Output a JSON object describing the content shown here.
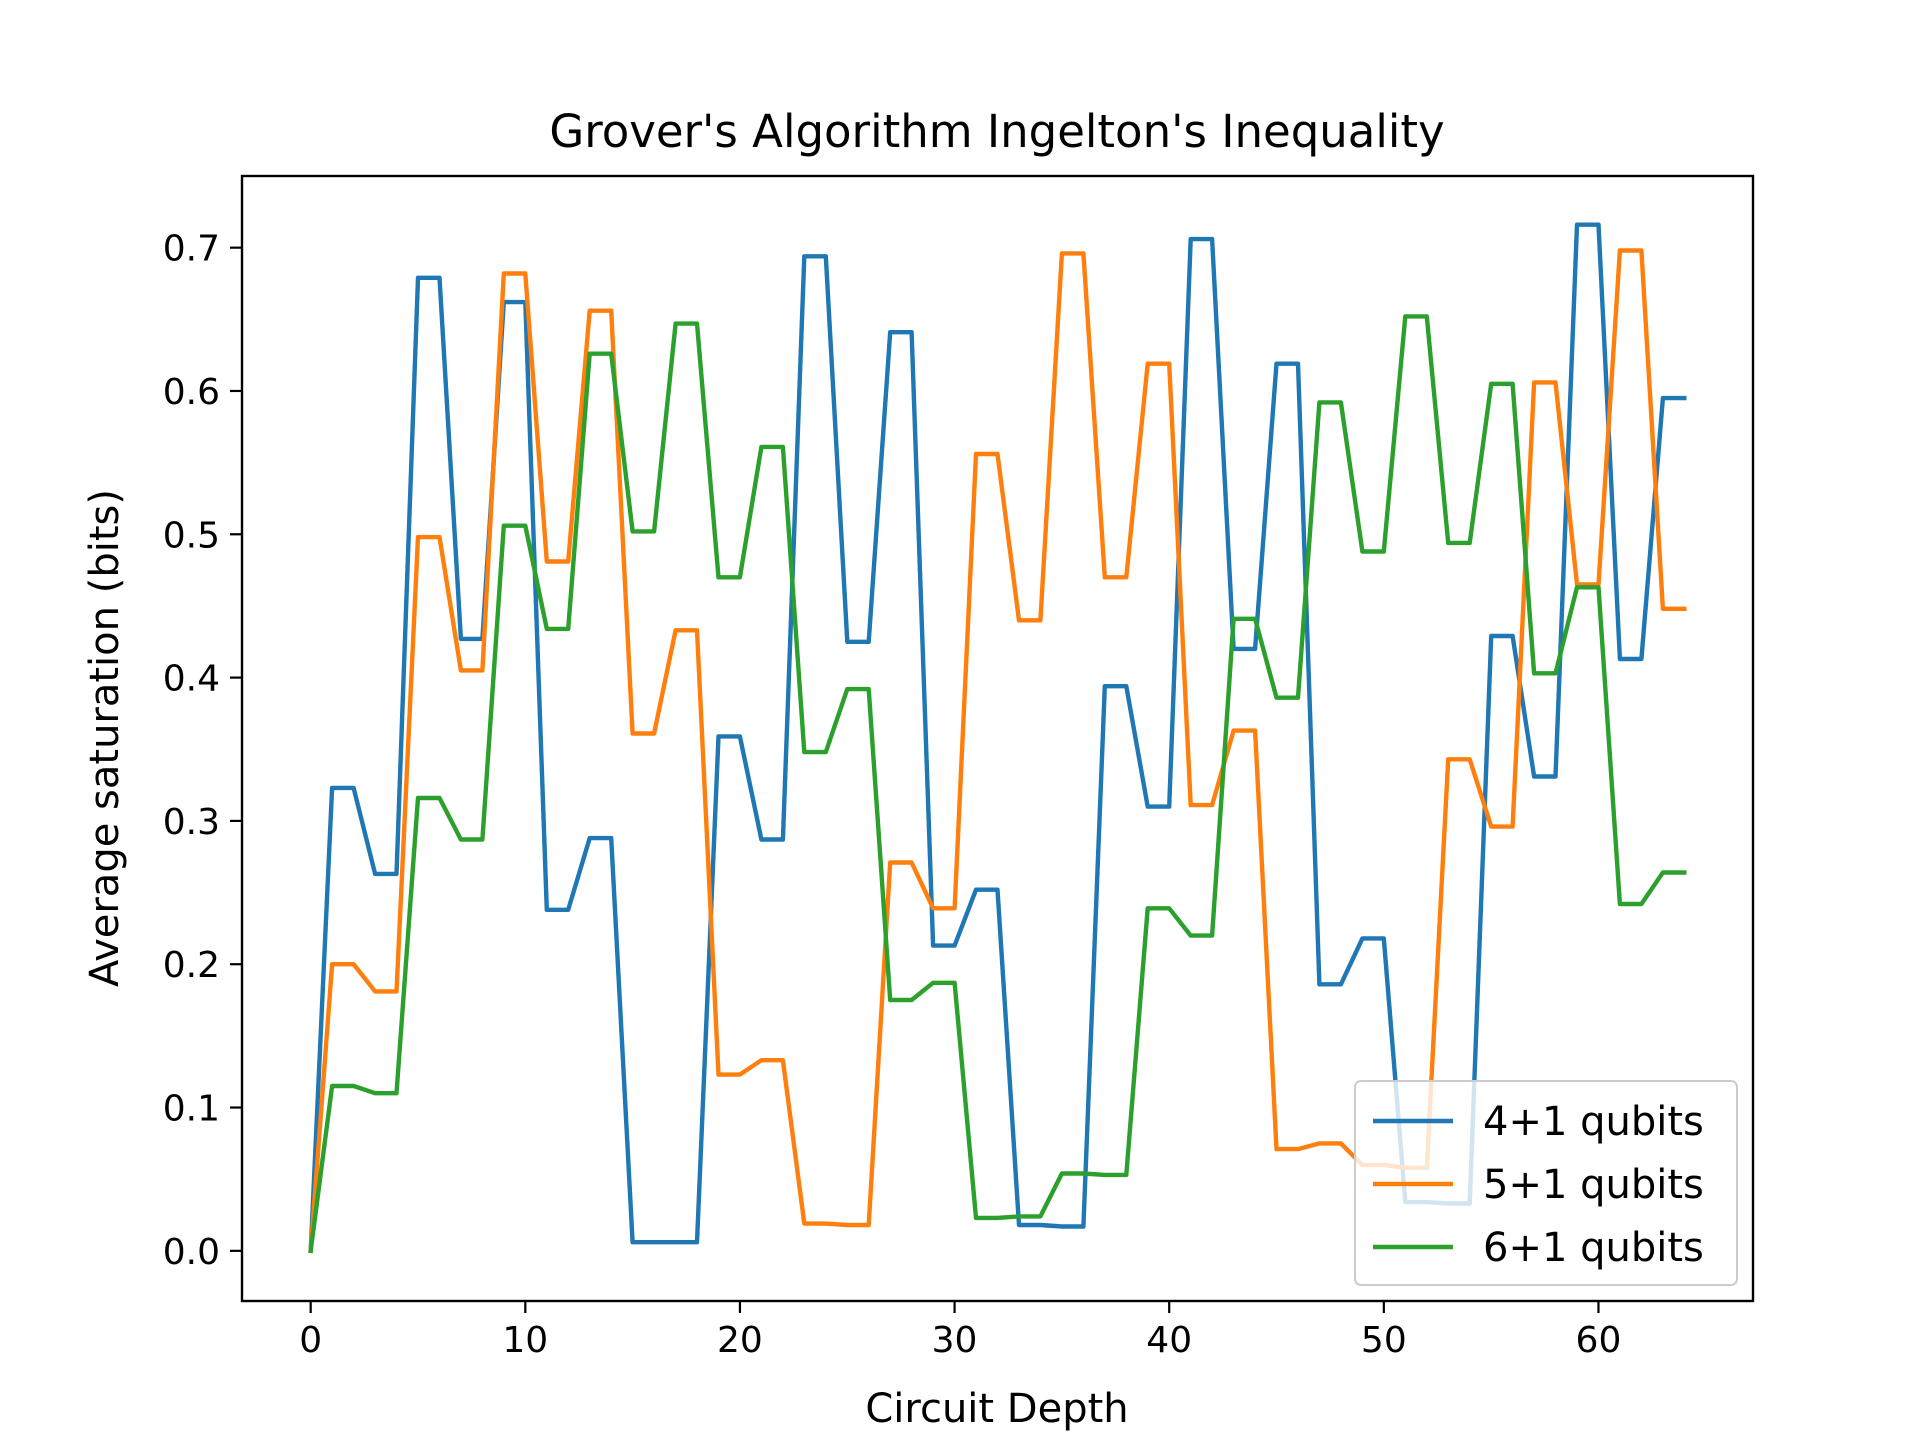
{
  "chart_data": {
    "type": "line",
    "title": "Grover's Algorithm Ingelton's Inequality",
    "xlabel": "Circuit Depth",
    "ylabel": "Average saturation (bits)",
    "xlim": [
      -3.2,
      67.2
    ],
    "ylim": [
      -0.035,
      0.75
    ],
    "xticks": [
      0,
      10,
      20,
      30,
      40,
      50,
      60
    ],
    "xtick_labels": [
      "0",
      "10",
      "20",
      "30",
      "40",
      "50",
      "60"
    ],
    "yticks": [
      0.0,
      0.1,
      0.2,
      0.3,
      0.4,
      0.5,
      0.6,
      0.7
    ],
    "ytick_labels": [
      "0.0",
      "0.1",
      "0.2",
      "0.3",
      "0.4",
      "0.5",
      "0.6",
      "0.7"
    ],
    "legend_position": "lower-right",
    "grid": false,
    "series": [
      {
        "name": "4+1 qubits",
        "color": "#1f77b4",
        "x": [
          0,
          1,
          2,
          3,
          4,
          5,
          6,
          7,
          8,
          9,
          10,
          11,
          12,
          13,
          14,
          15,
          16,
          17,
          18,
          19,
          20,
          21,
          22,
          23,
          24,
          25,
          26,
          27,
          28,
          29,
          30,
          31,
          32,
          33,
          34,
          35,
          36,
          37,
          38,
          39,
          40,
          41,
          42,
          43,
          44,
          45,
          46,
          47,
          48,
          49,
          50,
          51,
          52,
          53,
          54,
          55,
          56,
          57,
          58,
          59,
          60,
          61,
          62,
          63,
          64
        ],
        "y": [
          0.0,
          0.323,
          0.323,
          0.263,
          0.263,
          0.679,
          0.679,
          0.427,
          0.427,
          0.662,
          0.662,
          0.238,
          0.238,
          0.288,
          0.288,
          0.006,
          0.006,
          0.006,
          0.006,
          0.359,
          0.359,
          0.287,
          0.287,
          0.694,
          0.694,
          0.425,
          0.425,
          0.641,
          0.641,
          0.213,
          0.213,
          0.252,
          0.252,
          0.018,
          0.018,
          0.017,
          0.017,
          0.394,
          0.394,
          0.31,
          0.31,
          0.706,
          0.706,
          0.42,
          0.42,
          0.619,
          0.619,
          0.186,
          0.186,
          0.218,
          0.218,
          0.034,
          0.034,
          0.033,
          0.033,
          0.429,
          0.429,
          0.331,
          0.331,
          0.716,
          0.716,
          0.413,
          0.413,
          0.595,
          0.595
        ]
      },
      {
        "name": "5+1 qubits",
        "color": "#ff7f0e",
        "x": [
          0,
          1,
          2,
          3,
          4,
          5,
          6,
          7,
          8,
          9,
          10,
          11,
          12,
          13,
          14,
          15,
          16,
          17,
          18,
          19,
          20,
          21,
          22,
          23,
          24,
          25,
          26,
          27,
          28,
          29,
          30,
          31,
          32,
          33,
          34,
          35,
          36,
          37,
          38,
          39,
          40,
          41,
          42,
          43,
          44,
          45,
          46,
          47,
          48,
          49,
          50,
          51,
          52,
          53,
          54,
          55,
          56,
          57,
          58,
          59,
          60,
          61,
          62,
          63,
          64
        ],
        "y": [
          0.0,
          0.2,
          0.2,
          0.181,
          0.181,
          0.498,
          0.498,
          0.405,
          0.405,
          0.682,
          0.682,
          0.481,
          0.481,
          0.656,
          0.656,
          0.361,
          0.361,
          0.433,
          0.433,
          0.123,
          0.123,
          0.133,
          0.133,
          0.019,
          0.019,
          0.018,
          0.018,
          0.271,
          0.271,
          0.239,
          0.239,
          0.556,
          0.556,
          0.44,
          0.44,
          0.696,
          0.696,
          0.47,
          0.47,
          0.619,
          0.619,
          0.311,
          0.311,
          0.363,
          0.363,
          0.071,
          0.071,
          0.075,
          0.075,
          0.06,
          0.06,
          0.058,
          0.058,
          0.343,
          0.343,
          0.296,
          0.296,
          0.606,
          0.606,
          0.465,
          0.465,
          0.698,
          0.698,
          0.448,
          0.448
        ]
      },
      {
        "name": "6+1 qubits",
        "color": "#2ca02c",
        "x": [
          0,
          1,
          2,
          3,
          4,
          5,
          6,
          7,
          8,
          9,
          10,
          11,
          12,
          13,
          14,
          15,
          16,
          17,
          18,
          19,
          20,
          21,
          22,
          23,
          24,
          25,
          26,
          27,
          28,
          29,
          30,
          31,
          32,
          33,
          34,
          35,
          36,
          37,
          38,
          39,
          40,
          41,
          42,
          43,
          44,
          45,
          46,
          47,
          48,
          49,
          50,
          51,
          52,
          53,
          54,
          55,
          56,
          57,
          58,
          59,
          60,
          61,
          62,
          63,
          64
        ],
        "y": [
          0.0,
          0.115,
          0.115,
          0.11,
          0.11,
          0.316,
          0.316,
          0.287,
          0.287,
          0.506,
          0.506,
          0.434,
          0.434,
          0.626,
          0.626,
          0.502,
          0.502,
          0.647,
          0.647,
          0.47,
          0.47,
          0.561,
          0.561,
          0.348,
          0.348,
          0.392,
          0.392,
          0.175,
          0.175,
          0.187,
          0.187,
          0.023,
          0.023,
          0.024,
          0.024,
          0.054,
          0.054,
          0.053,
          0.053,
          0.239,
          0.239,
          0.22,
          0.22,
          0.441,
          0.441,
          0.386,
          0.386,
          0.592,
          0.592,
          0.488,
          0.488,
          0.652,
          0.652,
          0.494,
          0.494,
          0.605,
          0.605,
          0.403,
          0.403,
          0.463,
          0.463,
          0.242,
          0.242,
          0.264,
          0.264
        ]
      }
    ]
  }
}
